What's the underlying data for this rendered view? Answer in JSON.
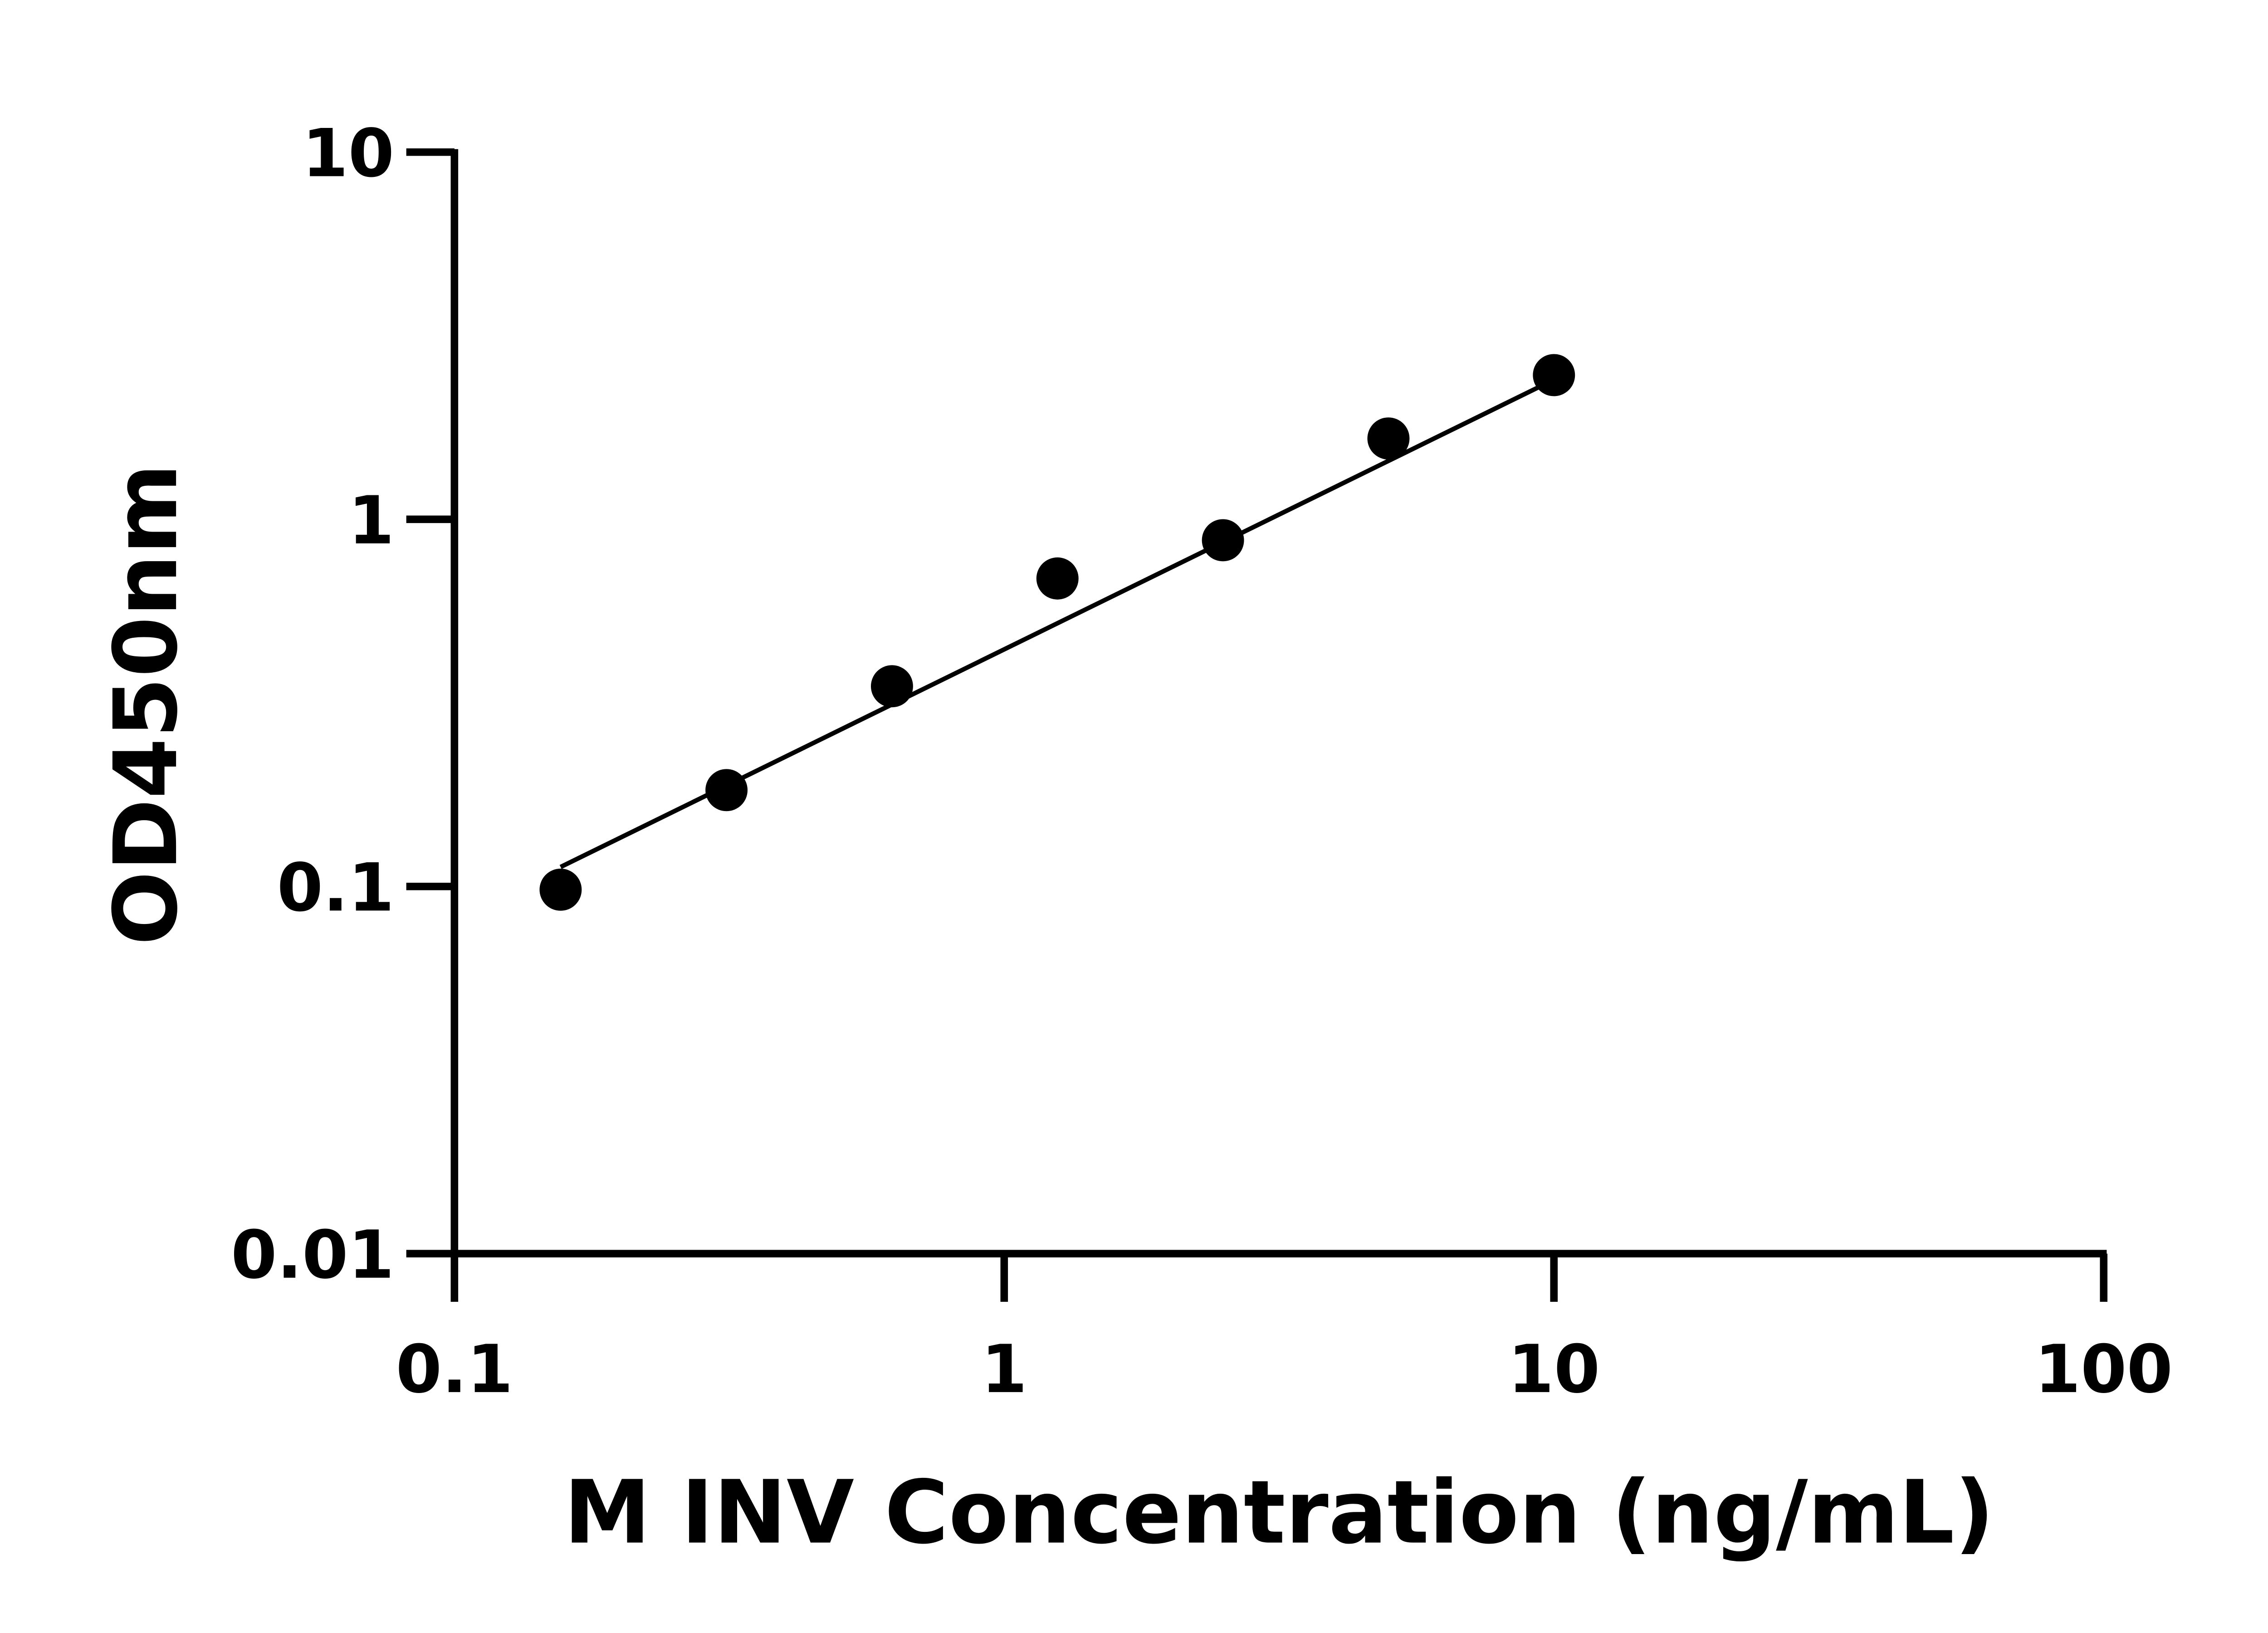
{
  "chart_data": {
    "type": "scatter",
    "title": "",
    "xlabel": "M INV Concentration (ng/mL)",
    "ylabel": "OD450nm",
    "xscale": "log",
    "yscale": "log",
    "xlim": [
      0.1,
      100
    ],
    "ylim": [
      0.01,
      10
    ],
    "xticks": [
      0.1,
      1,
      10,
      100
    ],
    "xtick_labels": [
      "0.1",
      "1",
      "10",
      "100"
    ],
    "yticks": [
      0.01,
      0.1,
      1,
      10
    ],
    "ytick_labels": [
      "0.01",
      "0.1",
      "1",
      "10"
    ],
    "grid": false,
    "series": [
      {
        "x": [
          0.156,
          0.3125,
          0.625,
          1.25,
          2.5,
          5,
          10
        ],
        "y": [
          0.098,
          0.183,
          0.351,
          0.69,
          0.877,
          1.66,
          2.47
        ]
      }
    ],
    "fit_line": {
      "x": [
        0.156,
        10
      ],
      "y": [
        0.113,
        2.4
      ]
    },
    "colors": {
      "points": "#000000",
      "line": "#000000"
    }
  }
}
